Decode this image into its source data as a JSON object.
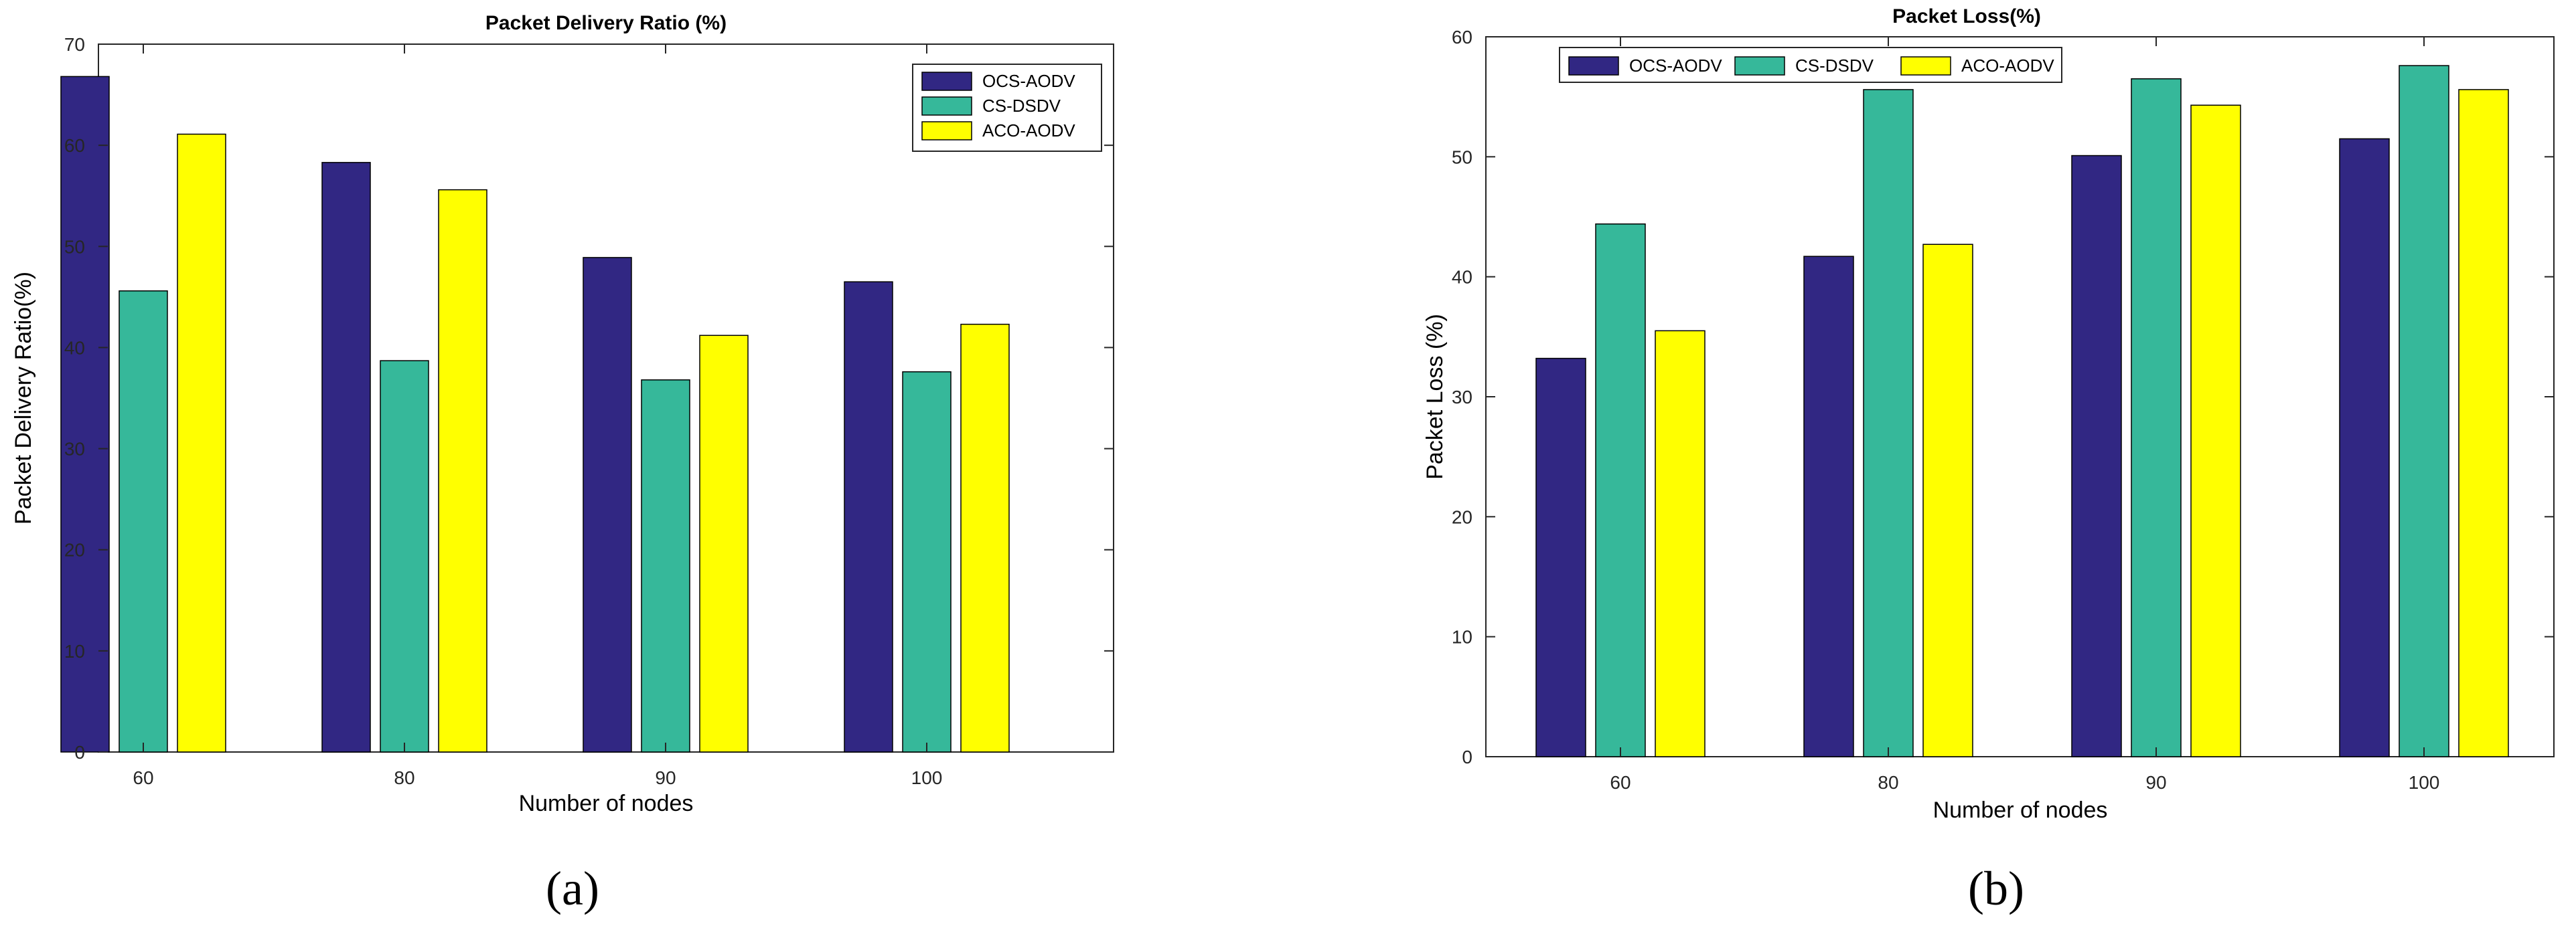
{
  "colors": {
    "series": [
      "#312783",
      "#36b89a",
      "#ffff00"
    ],
    "axis": "#262626",
    "background": "#ffffff"
  },
  "chart_data": [
    {
      "type": "bar",
      "title": "Packet Delivery Ratio (%)",
      "xlabel": "Number of nodes",
      "ylabel": "Packet Delivery Ratio(%)",
      "categories": [
        "60",
        "80",
        "90",
        "100"
      ],
      "ylim": [
        0,
        70
      ],
      "yticks": [
        0,
        10,
        20,
        30,
        40,
        50,
        60,
        70
      ],
      "grid": false,
      "legend_position": "top-right",
      "legend_layout": "vertical",
      "series": [
        {
          "name": "OCS-AODV",
          "values": [
            66.8,
            58.3,
            48.9,
            46.5
          ]
        },
        {
          "name": "CS-DSDV",
          "values": [
            45.6,
            38.7,
            36.8,
            37.6
          ]
        },
        {
          "name": "ACO-AODV",
          "values": [
            61.1,
            55.6,
            41.2,
            42.3
          ]
        }
      ],
      "caption": "(a)"
    },
    {
      "type": "bar",
      "title": "Packet Loss(%)",
      "xlabel": "Number of nodes",
      "ylabel": "Packet Loss (%)",
      "categories": [
        "60",
        "80",
        "90",
        "100"
      ],
      "ylim": [
        0,
        60
      ],
      "yticks": [
        0,
        10,
        20,
        30,
        40,
        50,
        60
      ],
      "grid": false,
      "legend_position": "top-left",
      "legend_layout": "horizontal",
      "series": [
        {
          "name": "OCS-AODV",
          "values": [
            33.2,
            41.7,
            50.1,
            51.5
          ]
        },
        {
          "name": "CS-DSDV",
          "values": [
            44.4,
            55.6,
            56.5,
            57.6
          ]
        },
        {
          "name": "ACO-AODV",
          "values": [
            35.5,
            42.7,
            54.3,
            55.6
          ]
        }
      ],
      "caption": "(b)"
    }
  ]
}
